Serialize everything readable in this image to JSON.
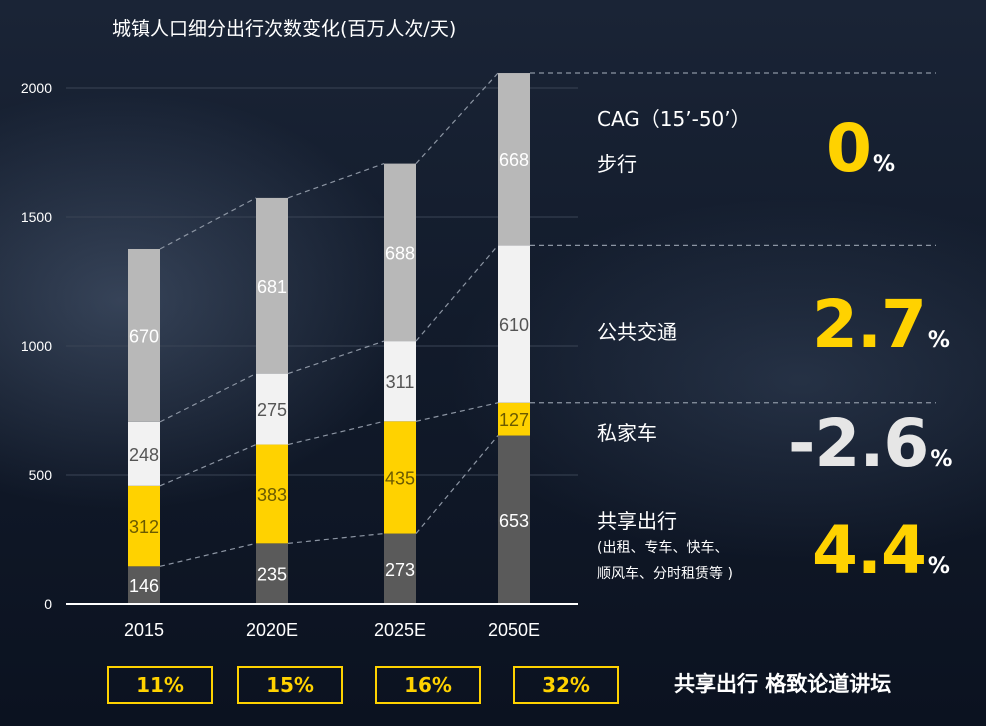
{
  "chart_data": {
    "type": "bar",
    "stacked": true,
    "title": "城镇人口细分出行次数变化(百万人次/天)",
    "categories": [
      "2015",
      "2020E",
      "2025E",
      "2050E"
    ],
    "series": [
      {
        "name": "共享出行",
        "values": [
          146,
          235,
          273,
          653
        ],
        "color": "#5a5a5a"
      },
      {
        "name": "私家车",
        "values": [
          312,
          383,
          435,
          127
        ],
        "color": "#ffd200"
      },
      {
        "name": "公共交通",
        "values": [
          248,
          275,
          311,
          610
        ],
        "color": "#f2f2f2"
      },
      {
        "name": "步行",
        "values": [
          670,
          681,
          688,
          668
        ],
        "color": "#b8b8b8"
      }
    ],
    "yticks": [
      0,
      500,
      1000,
      1500,
      2000
    ],
    "ylim": [
      0,
      2000
    ],
    "grid": true,
    "bottom_share": [
      "11%",
      "15%",
      "16%",
      "32%"
    ]
  },
  "panel": {
    "header": "CAG（15’-50’）",
    "rows": [
      {
        "label": "步行",
        "value": "0",
        "unit": "%",
        "color": "yellow"
      },
      {
        "label": "公共交通",
        "value": "2.7",
        "unit": "%",
        "color": "yellow"
      },
      {
        "label": "私家车",
        "value": "-2.6",
        "unit": "%",
        "color": "white"
      },
      {
        "label": "共享出行",
        "value": "4.4",
        "unit": "%",
        "color": "yellow"
      }
    ],
    "sub_line1": "(出租、专车、快车、",
    "sub_line2": "顺风车、分时租赁等 )"
  },
  "watermark": "共享出行 格致论道讲坛"
}
